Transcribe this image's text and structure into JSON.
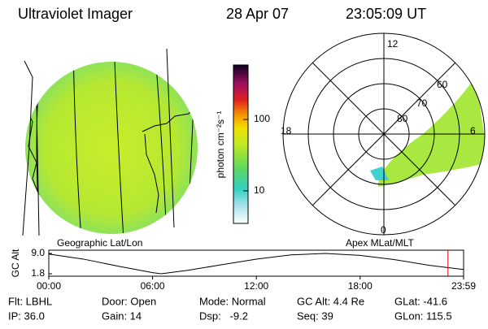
{
  "header": {
    "title": "Ultraviolet Imager",
    "date": "28 Apr 07",
    "time": "23:05:09 UT"
  },
  "map": {
    "label": "Geographic Lat/Lon"
  },
  "colorbar": {
    "label": "photon cm⁻²s⁻¹",
    "log": true,
    "clim": [
      3.5,
      580
    ],
    "ticks": [
      10,
      100
    ]
  },
  "polar": {
    "label": "Apex MLat/MLT",
    "mlt_labels": [
      "12",
      "18",
      "6",
      "0"
    ],
    "lat_labels": [
      "80",
      "70",
      "60"
    ]
  },
  "altitude": {
    "type": "line",
    "ylabel": "GC Alt",
    "ylim": [
      1.8,
      9.0
    ],
    "yticks": [
      {
        "value": 9.0,
        "label": "9.0"
      },
      1.8
    ],
    "xlim": [
      0,
      23.983
    ],
    "xticks": [
      {
        "value": 0,
        "label": "00:00"
      },
      {
        "value": 6,
        "label": "06:00"
      },
      {
        "value": 12,
        "label": "12:00"
      },
      {
        "value": 18,
        "label": "18:00"
      },
      {
        "value": 23.983,
        "label": "23:59"
      }
    ],
    "x": [
      0,
      2,
      4,
      6,
      6.5,
      8,
      10,
      12,
      14,
      16,
      18,
      20,
      22,
      23.983
    ],
    "values": [
      8.8,
      7.0,
      4.5,
      2.2,
      1.8,
      3.0,
      5.0,
      7.0,
      8.5,
      9.0,
      8.3,
      6.8,
      4.8,
      3.3
    ],
    "marker": 23.08,
    "marker_color": "#dd0000"
  },
  "footer": {
    "rows": [
      [
        "Flt: LBHL",
        "Door: Open",
        "Mode: Normal",
        "GC Alt: 4.4 Re",
        "GLat: -41.6"
      ],
      [
        "IP: 36.0",
        "Gain: 14",
        "Dsp:   -9.2",
        "Seq: 39",
        "GLon: 115.5"
      ]
    ]
  }
}
